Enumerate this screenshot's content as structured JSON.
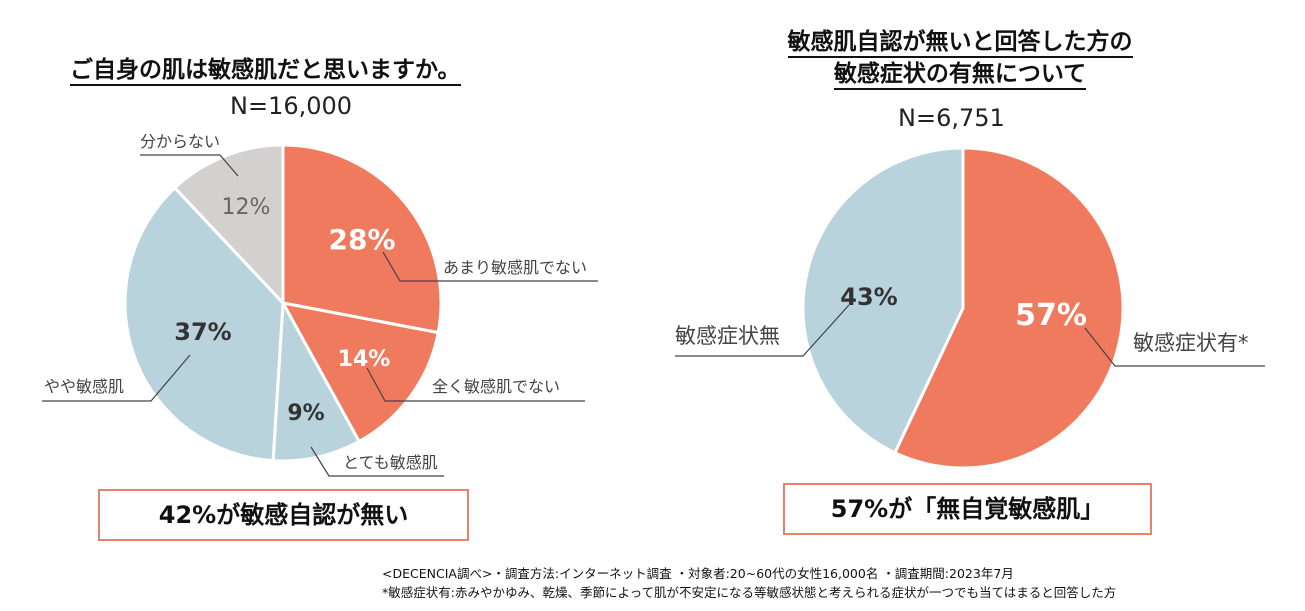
{
  "colors": {
    "salmon": "#ef7a5d",
    "lightblue": "#b9d3dd",
    "gray": "#d3d1d0",
    "callout_border": "#e8836a"
  },
  "left": {
    "title": "ご自身の肌は敏感肌だと思いますか。",
    "n_label": "N=16,000",
    "callout": "42%が敏感自認が無い"
  },
  "right": {
    "title_line1": "敏感肌自認が無いと回答した方の",
    "title_line2": "敏感症状の有無について",
    "n_label": "N=6,751",
    "callout": "57%が「無自覚敏感肌」"
  },
  "chart_data": [
    {
      "type": "pie",
      "title": "ご自身の肌は敏感肌だと思いますか。",
      "n": "N=16,000",
      "slices": [
        {
          "label": "あまり敏感肌でない",
          "value": 28,
          "display": "28%"
        },
        {
          "label": "全く敏感肌でない",
          "value": 14,
          "display": "14%"
        },
        {
          "label": "とても敏感肌",
          "value": 9,
          "display": "9%"
        },
        {
          "label": "やや敏感肌",
          "value": 37,
          "display": "37%"
        },
        {
          "label": "分からない",
          "value": 12,
          "display": "12%"
        }
      ]
    },
    {
      "type": "pie",
      "title": "敏感肌自認が無いと回答した方の敏感症状の有無について",
      "n": "N=6,751",
      "slices": [
        {
          "label": "敏感症状有*",
          "value": 57,
          "display": "57%"
        },
        {
          "label": "敏感症状無",
          "value": 43,
          "display": "43%"
        }
      ]
    }
  ],
  "footnotes": {
    "line1": "<DECENCIA調べ>・調査方法:インターネット調査 ・対象者:20~60代の女性16,000名 ・調査期間:2023年7月",
    "line2": "*敏感症状有:赤みやかゆみ、乾燥、季節によって肌が不安定になる等敏感状態と考えられる症状が一つでも当てはまると回答した方"
  }
}
